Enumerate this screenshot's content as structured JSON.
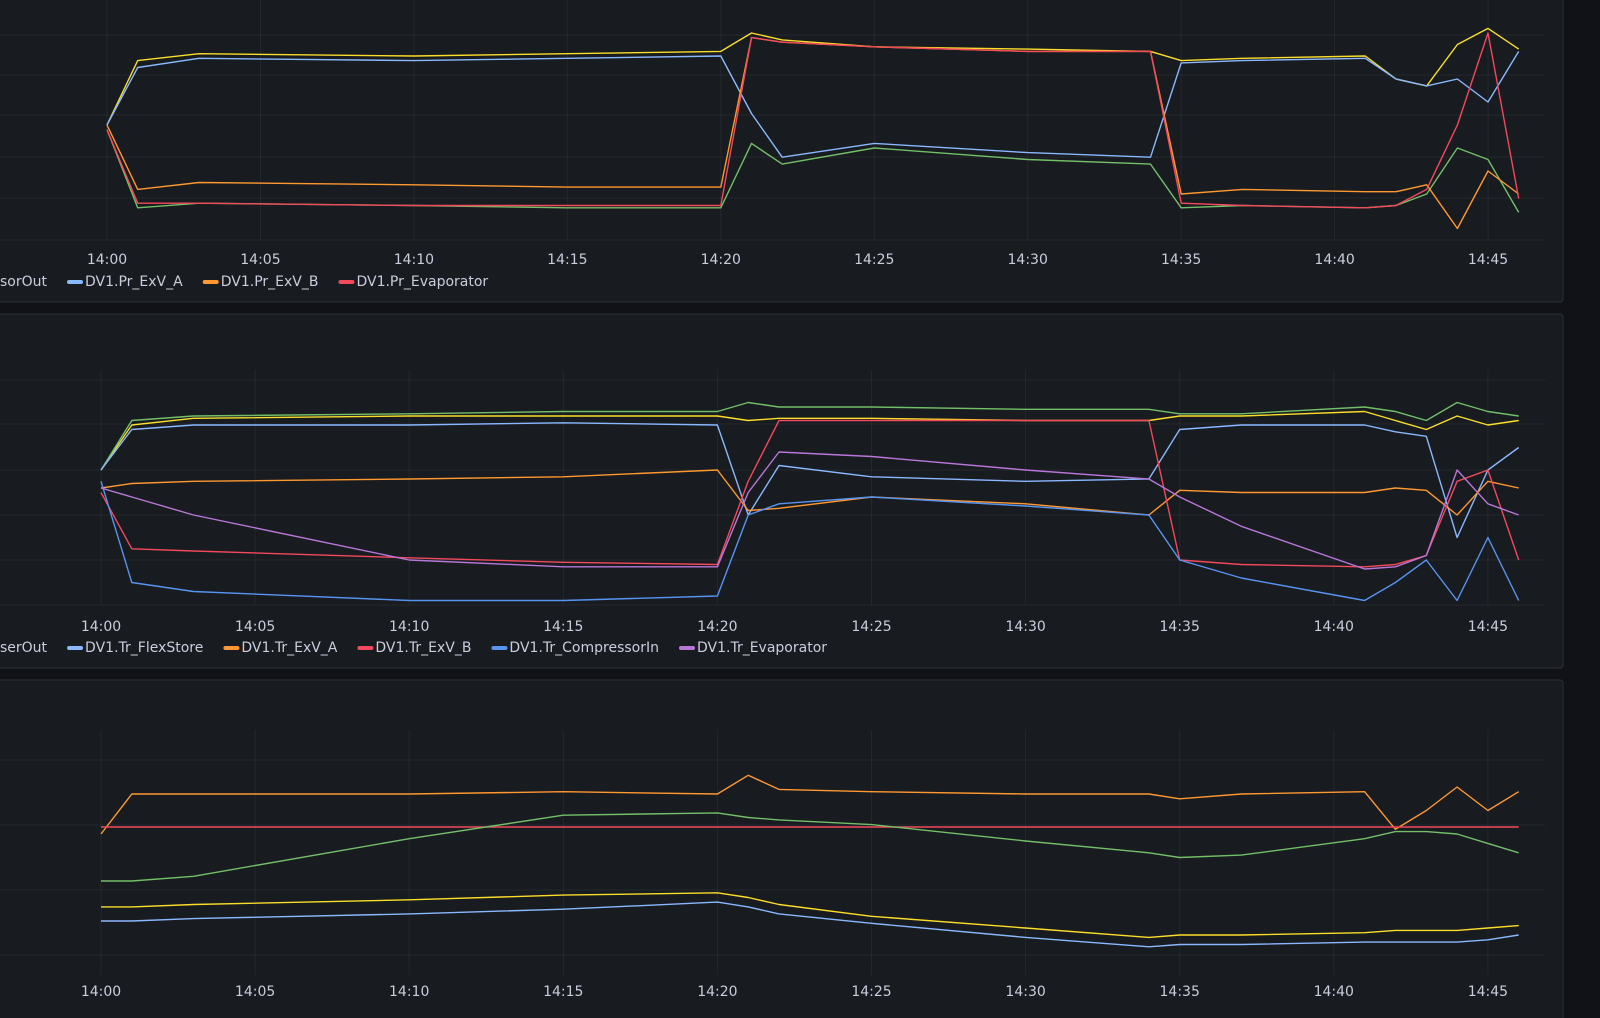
{
  "chart_data": [
    {
      "type": "line",
      "x": [
        "14:00",
        "14:01",
        "14:03",
        "14:10",
        "14:15",
        "14:20",
        "14:21",
        "14:22",
        "14:25",
        "14:30",
        "14:34",
        "14:35",
        "14:37",
        "14:41",
        "14:42",
        "14:43",
        "14:44",
        "14:45",
        "14:46"
      ],
      "xlim": [
        "14:00",
        "14:47"
      ],
      "ylim": [
        0,
        100
      ],
      "xticks": [
        "14:00",
        "14:05",
        "14:10",
        "14:15",
        "14:20",
        "14:25",
        "14:30",
        "14:35",
        "14:40",
        "14:45"
      ],
      "series": [
        {
          "name": "sorOut",
          "color": "#fade2a",
          "values": [
            50,
            78,
            81,
            80,
            81,
            82,
            90,
            87,
            84,
            83,
            82,
            78,
            79,
            80,
            70,
            67,
            85,
            92,
            83
          ]
        },
        {
          "name": null,
          "color": "#73bf69",
          "values": [
            48,
            14,
            16,
            15,
            14,
            14,
            42,
            33,
            40,
            35,
            33,
            14,
            15,
            14,
            15,
            20,
            40,
            35,
            12
          ]
        },
        {
          "name": "DV1.Pr_ExV_A",
          "color": "#8ab8ff",
          "values": [
            50,
            75,
            79,
            78,
            79,
            80,
            55,
            36,
            42,
            38,
            36,
            77,
            78,
            79,
            70,
            67,
            70,
            60,
            82
          ]
        },
        {
          "name": "DV1.Pr_ExV_B",
          "color": "#ff9830",
          "values": [
            50,
            22,
            25,
            24,
            23,
            23,
            88,
            86,
            84,
            82,
            82,
            20,
            22,
            21,
            21,
            24,
            5,
            30,
            20
          ]
        },
        {
          "name": "DV1.Pr_Evaporator",
          "color": "#f2495c",
          "values": [
            48,
            16,
            16,
            15,
            15,
            15,
            88,
            86,
            84,
            82,
            82,
            16,
            15,
            14,
            15,
            22,
            50,
            90,
            18
          ]
        }
      ]
    },
    {
      "type": "line",
      "x": [
        "14:00",
        "14:01",
        "14:03",
        "14:10",
        "14:15",
        "14:20",
        "14:21",
        "14:22",
        "14:25",
        "14:30",
        "14:34",
        "14:35",
        "14:37",
        "14:41",
        "14:42",
        "14:43",
        "14:44",
        "14:45",
        "14:46"
      ],
      "xlim": [
        "14:00",
        "14:47"
      ],
      "ylim": [
        0,
        100
      ],
      "xticks": [
        "14:00",
        "14:05",
        "14:10",
        "14:15",
        "14:20",
        "14:25",
        "14:30",
        "14:35",
        "14:40",
        "14:45"
      ],
      "series": [
        {
          "name": "serOut",
          "color": "#fade2a",
          "values": [
            60,
            80,
            83,
            84,
            84,
            84,
            82,
            83,
            83,
            82,
            82,
            84,
            84,
            86,
            82,
            78,
            84,
            80,
            82
          ]
        },
        {
          "name": null,
          "color": "#73bf69",
          "values": [
            60,
            82,
            84,
            85,
            86,
            86,
            90,
            88,
            88,
            87,
            87,
            85,
            85,
            88,
            86,
            82,
            90,
            86,
            84
          ]
        },
        {
          "name": "DV1.Tr_FlexStore",
          "color": "#8ab8ff",
          "values": [
            60,
            78,
            80,
            80,
            81,
            80,
            40,
            62,
            57,
            55,
            56,
            78,
            80,
            80,
            77,
            75,
            30,
            60,
            70
          ]
        },
        {
          "name": "DV1.Tr_ExV_A",
          "color": "#ff9830",
          "values": [
            52,
            54,
            55,
            56,
            57,
            60,
            42,
            43,
            48,
            45,
            40,
            51,
            50,
            50,
            52,
            51,
            40,
            55,
            52
          ]
        },
        {
          "name": "DV1.Tr_ExV_B",
          "color": "#f2495c",
          "values": [
            50,
            25,
            24,
            21,
            19,
            18,
            55,
            82,
            82,
            82,
            82,
            20,
            18,
            17,
            18,
            22,
            55,
            60,
            20
          ]
        },
        {
          "name": "DV1.Tr_CompressorIn",
          "color": "#5794f2",
          "values": [
            55,
            10,
            6,
            2,
            2,
            4,
            40,
            45,
            48,
            44,
            40,
            20,
            12,
            2,
            10,
            20,
            2,
            30,
            2
          ]
        },
        {
          "name": "DV1.Tr_Evaporator",
          "color": "#b877d9",
          "values": [
            52,
            48,
            40,
            20,
            17,
            17,
            50,
            68,
            66,
            60,
            56,
            48,
            35,
            16,
            17,
            22,
            60,
            45,
            40
          ]
        }
      ]
    },
    {
      "type": "line",
      "x": [
        "14:00",
        "14:01",
        "14:03",
        "14:10",
        "14:15",
        "14:20",
        "14:21",
        "14:22",
        "14:25",
        "14:30",
        "14:34",
        "14:35",
        "14:37",
        "14:41",
        "14:42",
        "14:43",
        "14:44",
        "14:45",
        "14:46"
      ],
      "xlim": [
        "14:00",
        "14:47"
      ],
      "ylim": [
        0,
        100
      ],
      "xticks": [
        "14:00",
        "14:05",
        "14:10",
        "14:15",
        "14:20",
        "14:25",
        "14:30",
        "14:35",
        "14:40",
        "14:45"
      ],
      "series": [
        {
          "name": null,
          "color": "#ff9830",
          "values": [
            60,
            77,
            77,
            77,
            78,
            77,
            85,
            79,
            78,
            77,
            77,
            75,
            77,
            78,
            62,
            70,
            80,
            70,
            78
          ]
        },
        {
          "name": null,
          "color": "#f2495c",
          "values": [
            63,
            63,
            63,
            63,
            63,
            63,
            63,
            63,
            63,
            63,
            63,
            63,
            63,
            63,
            63,
            63,
            63,
            63,
            63
          ]
        },
        {
          "name": null,
          "color": "#73bf69",
          "values": [
            40,
            40,
            42,
            58,
            68,
            69,
            67,
            66,
            64,
            57,
            52,
            50,
            51,
            58,
            61,
            61,
            60,
            56,
            52
          ]
        },
        {
          "name": null,
          "color": "#fade2a",
          "values": [
            29,
            29,
            30,
            32,
            34,
            35,
            33,
            30,
            25,
            20,
            16,
            17,
            17,
            18,
            19,
            19,
            19,
            20,
            21
          ]
        },
        {
          "name": null,
          "color": "#8ab8ff",
          "values": [
            23,
            23,
            24,
            26,
            28,
            31,
            29,
            26,
            22,
            16,
            12,
            13,
            13,
            14,
            14,
            14,
            14,
            15,
            17
          ]
        }
      ]
    }
  ]
}
